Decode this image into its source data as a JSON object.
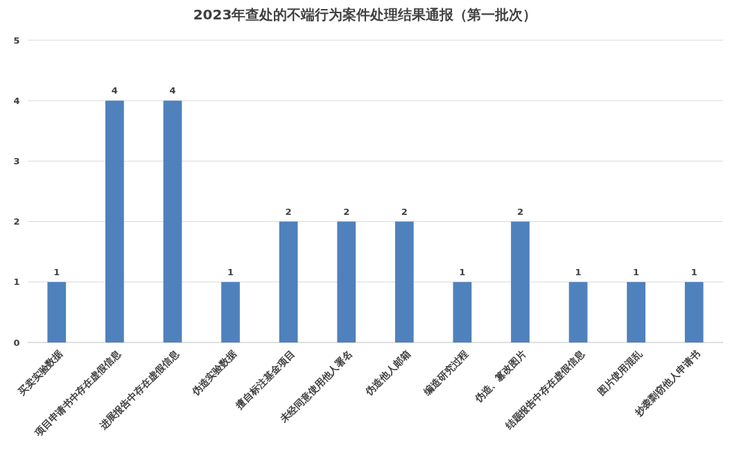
{
  "chart_data": {
    "type": "bar",
    "title": "2023年查处的不端行为案件处理结果通报（第一批次）",
    "categories": [
      "买卖实验数据",
      "项目申请书中存在虚假信息",
      "进展报告中存在虚假信息",
      "伪造实验数据",
      "擅自标注基金项目",
      "未经同意使用他人署名",
      "伪造他人邮箱",
      "编造研究过程",
      "伪造、篡改图片",
      "结题报告中存在虚假信息",
      "图片使用混乱",
      "抄袭剽窃他人申请书"
    ],
    "values": [
      1,
      4,
      4,
      1,
      2,
      2,
      2,
      1,
      2,
      1,
      1,
      1
    ],
    "color": "#4f81bd",
    "ylim": [
      0,
      5
    ],
    "yticks": [
      0,
      1,
      2,
      3,
      4,
      5
    ],
    "grid": "y",
    "data_labels": true
  }
}
